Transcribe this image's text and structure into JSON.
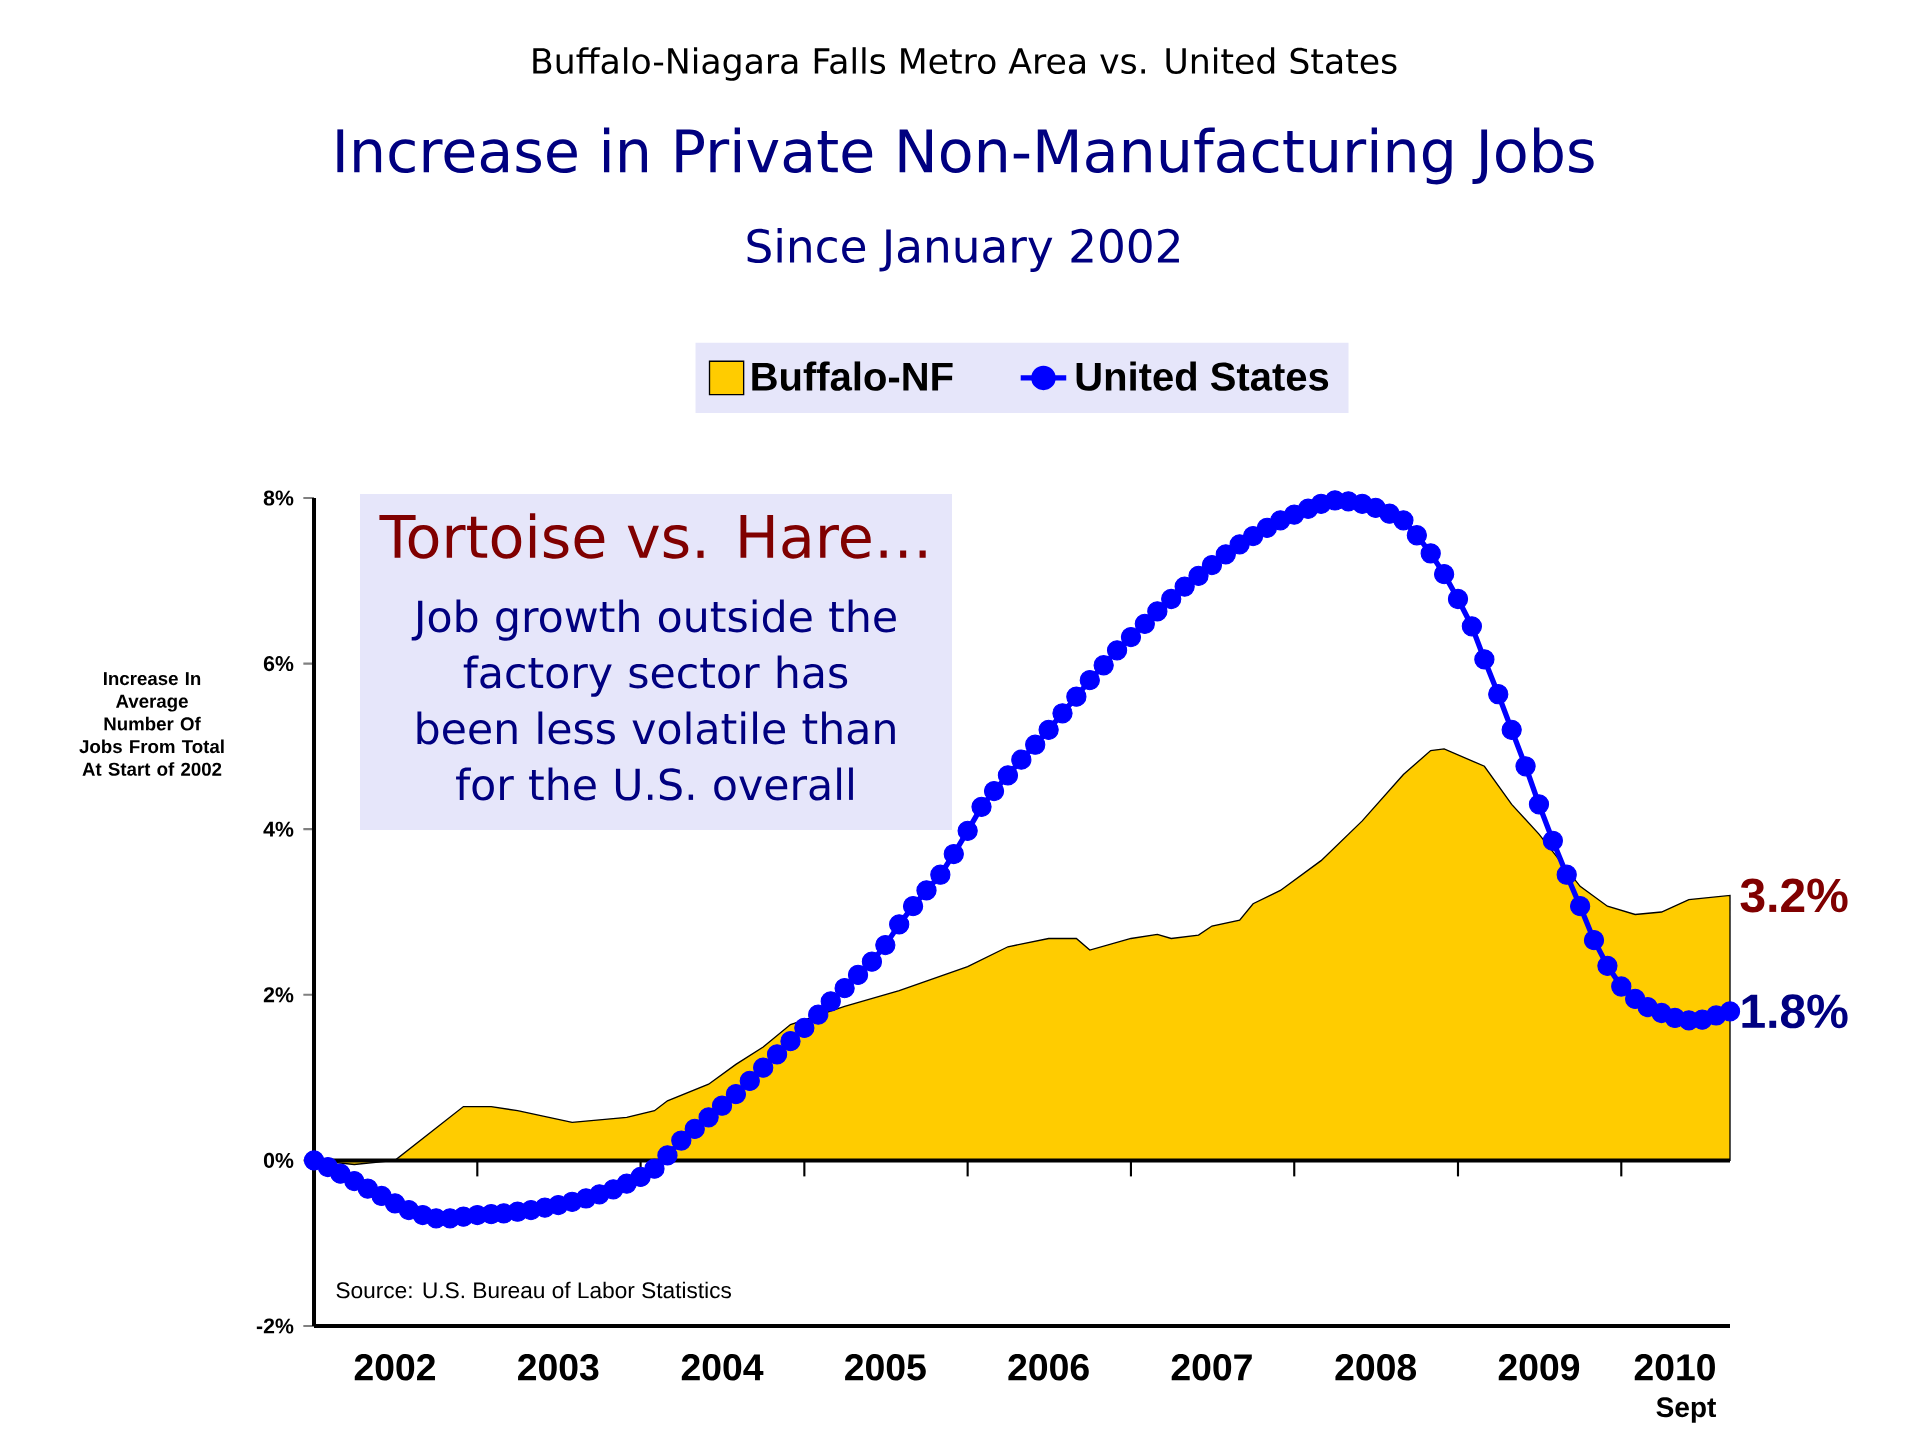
{
  "chart_data": {
    "type": "area",
    "title": "Increase in Private Non-Manufacturing Jobs",
    "subtitle": "Since January 2002",
    "ylabel": "Increase In Average Number Of Jobs From Total At Start of 2002",
    "annotations": [
      "Buffalo-Niagara Falls Metro Area vs. United States",
      "Tortoise vs. Hare…",
      "Job growth outside the factory sector has been less volatile than for the U.S. overall",
      "Source:  U.S. Bureau of Labor Statistics",
      {
        "text": "3.2%",
        "x": "2010-09",
        "y": 3.2
      },
      {
        "text": "1.8%",
        "x": "2010-09",
        "y": 1.8
      },
      "Sept"
    ],
    "x": [
      "2002-01",
      "2002-02",
      "2002-03",
      "2002-04",
      "2002-05",
      "2002-06",
      "2002-07",
      "2002-08",
      "2002-09",
      "2002-10",
      "2002-11",
      "2002-12",
      "2003-01",
      "2003-02",
      "2003-03",
      "2003-04",
      "2003-05",
      "2003-06",
      "2003-07",
      "2003-08",
      "2003-09",
      "2003-10",
      "2003-11",
      "2003-12",
      "2004-01",
      "2004-02",
      "2004-03",
      "2004-04",
      "2004-05",
      "2004-06",
      "2004-07",
      "2004-08",
      "2004-09",
      "2004-10",
      "2004-11",
      "2004-12",
      "2005-01",
      "2005-02",
      "2005-03",
      "2005-04",
      "2005-05",
      "2005-06",
      "2005-07",
      "2005-08",
      "2005-09",
      "2005-10",
      "2005-11",
      "2005-12",
      "2006-01",
      "2006-02",
      "2006-03",
      "2006-04",
      "2006-05",
      "2006-06",
      "2006-07",
      "2006-08",
      "2006-09",
      "2006-10",
      "2006-11",
      "2006-12",
      "2007-01",
      "2007-02",
      "2007-03",
      "2007-04",
      "2007-05",
      "2007-06",
      "2007-07",
      "2007-08",
      "2007-09",
      "2007-10",
      "2007-11",
      "2007-12",
      "2008-01",
      "2008-02",
      "2008-03",
      "2008-04",
      "2008-05",
      "2008-06",
      "2008-07",
      "2008-08",
      "2008-09",
      "2008-10",
      "2008-11",
      "2008-12",
      "2009-01",
      "2009-02",
      "2009-03",
      "2009-04",
      "2009-05",
      "2009-06",
      "2009-07",
      "2009-08",
      "2009-09",
      "2009-10",
      "2009-11",
      "2009-12",
      "2010-01",
      "2010-02",
      "2010-03",
      "2010-04",
      "2010-05",
      "2010-06",
      "2010-07",
      "2010-08",
      "2010-09"
    ],
    "series": [
      {
        "name": "Buffalo-NF",
        "color": "#ffcc00",
        "x": [
          "2002-01",
          "2002-04",
          "2002-07",
          "2002-12",
          "2003-02",
          "2003-04",
          "2003-08",
          "2003-12",
          "2004-02",
          "2004-03",
          "2004-06",
          "2004-08",
          "2004-10",
          "2004-12",
          "2005-04",
          "2005-08",
          "2006-01",
          "2006-04",
          "2006-07",
          "2006-09",
          "2006-10",
          "2007-01",
          "2007-03",
          "2007-04",
          "2007-06",
          "2007-07",
          "2007-09",
          "2007-10",
          "2007-12",
          "2008-03",
          "2008-06",
          "2008-09",
          "2008-11",
          "2008-12",
          "2009-03",
          "2009-05",
          "2009-07",
          "2009-10",
          "2009-12",
          "2010-02",
          "2010-04",
          "2010-06",
          "2010-09"
        ],
        "values": [
          0,
          -0.05,
          0,
          0.65,
          0.65,
          0.6,
          0.46,
          0.52,
          0.6,
          0.72,
          0.92,
          1.16,
          1.37,
          1.64,
          1.86,
          2.05,
          2.34,
          2.58,
          2.68,
          2.68,
          2.54,
          2.68,
          2.73,
          2.68,
          2.72,
          2.83,
          2.9,
          3.1,
          3.26,
          3.62,
          4.1,
          4.66,
          4.95,
          4.97,
          4.76,
          4.3,
          3.94,
          3.31,
          3.07,
          2.97,
          3.0,
          3.15,
          3.2
        ]
      },
      {
        "name": "United States",
        "type": "line",
        "color": "#0000ff",
        "marker": "circle",
        "values": [
          0,
          -0.08,
          -0.16,
          -0.25,
          -0.34,
          -0.43,
          -0.52,
          -0.6,
          -0.66,
          -0.7,
          -0.7,
          -0.68,
          -0.66,
          -0.65,
          -0.64,
          -0.62,
          -0.6,
          -0.57,
          -0.54,
          -0.5,
          -0.46,
          -0.41,
          -0.35,
          -0.28,
          -0.2,
          -0.1,
          0.06,
          0.24,
          0.38,
          0.52,
          0.66,
          0.8,
          0.96,
          1.12,
          1.28,
          1.44,
          1.6,
          1.76,
          1.92,
          2.08,
          2.24,
          2.4,
          2.6,
          2.85,
          3.07,
          3.26,
          3.45,
          3.7,
          3.98,
          4.27,
          4.46,
          4.65,
          4.84,
          5.02,
          5.2,
          5.4,
          5.6,
          5.8,
          5.98,
          6.16,
          6.32,
          6.48,
          6.63,
          6.78,
          6.93,
          7.06,
          7.19,
          7.32,
          7.44,
          7.54,
          7.64,
          7.73,
          7.8,
          7.87,
          7.93,
          7.97,
          7.96,
          7.93,
          7.88,
          7.81,
          7.73,
          7.55,
          7.33,
          7.08,
          6.78,
          6.45,
          6.05,
          5.63,
          5.2,
          4.76,
          4.3,
          3.86,
          3.45,
          3.07,
          2.66,
          2.35,
          2.1,
          1.95,
          1.85,
          1.78,
          1.72,
          1.69,
          1.7,
          1.75,
          1.8
        ]
      }
    ],
    "xlim": [
      "2002-01",
      "2010-09"
    ],
    "xticks": [
      {
        "value": "2002-07",
        "label": "2002"
      },
      {
        "value": "2003-07",
        "label": "2003"
      },
      {
        "value": "2004-07",
        "label": "2004"
      },
      {
        "value": "2005-07",
        "label": "2005"
      },
      {
        "value": "2006-07",
        "label": "2006"
      },
      {
        "value": "2007-07",
        "label": "2007"
      },
      {
        "value": "2008-07",
        "label": "2008"
      },
      {
        "value": "2009-07",
        "label": "2009"
      },
      {
        "value": "2010-05",
        "label": "2010"
      },
      {
        "value": "2003-01",
        "label": null
      },
      {
        "value": "2004-01",
        "label": null
      },
      {
        "value": "2005-01",
        "label": null
      },
      {
        "value": "2006-01",
        "label": null
      },
      {
        "value": "2007-01",
        "label": null
      },
      {
        "value": "2008-01",
        "label": null
      },
      {
        "value": "2009-01",
        "label": null
      },
      {
        "value": "2010-01",
        "label": null
      }
    ],
    "ylim": [
      -2,
      8
    ],
    "yticks": [
      {
        "value": -2,
        "label": "-2%"
      },
      {
        "value": 0,
        "label": "0%"
      },
      {
        "value": 2,
        "label": "2%"
      },
      {
        "value": 4,
        "label": "4%"
      },
      {
        "value": 6,
        "label": "6%"
      },
      {
        "value": 8,
        "label": "8%"
      }
    ],
    "ref_lines": [
      {
        "axis": "y",
        "value": 0,
        "color": "#000000"
      }
    ],
    "legend": "top"
  }
}
